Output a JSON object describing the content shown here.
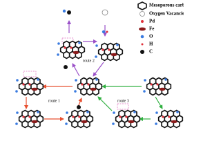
{
  "legend": [
    "Mesoporous carbon",
    "Oxygen Vacancies",
    "Pd",
    "Fe",
    "O",
    "H",
    "C"
  ],
  "routes": [
    "route 2",
    "route 1",
    "route 3"
  ]
}
